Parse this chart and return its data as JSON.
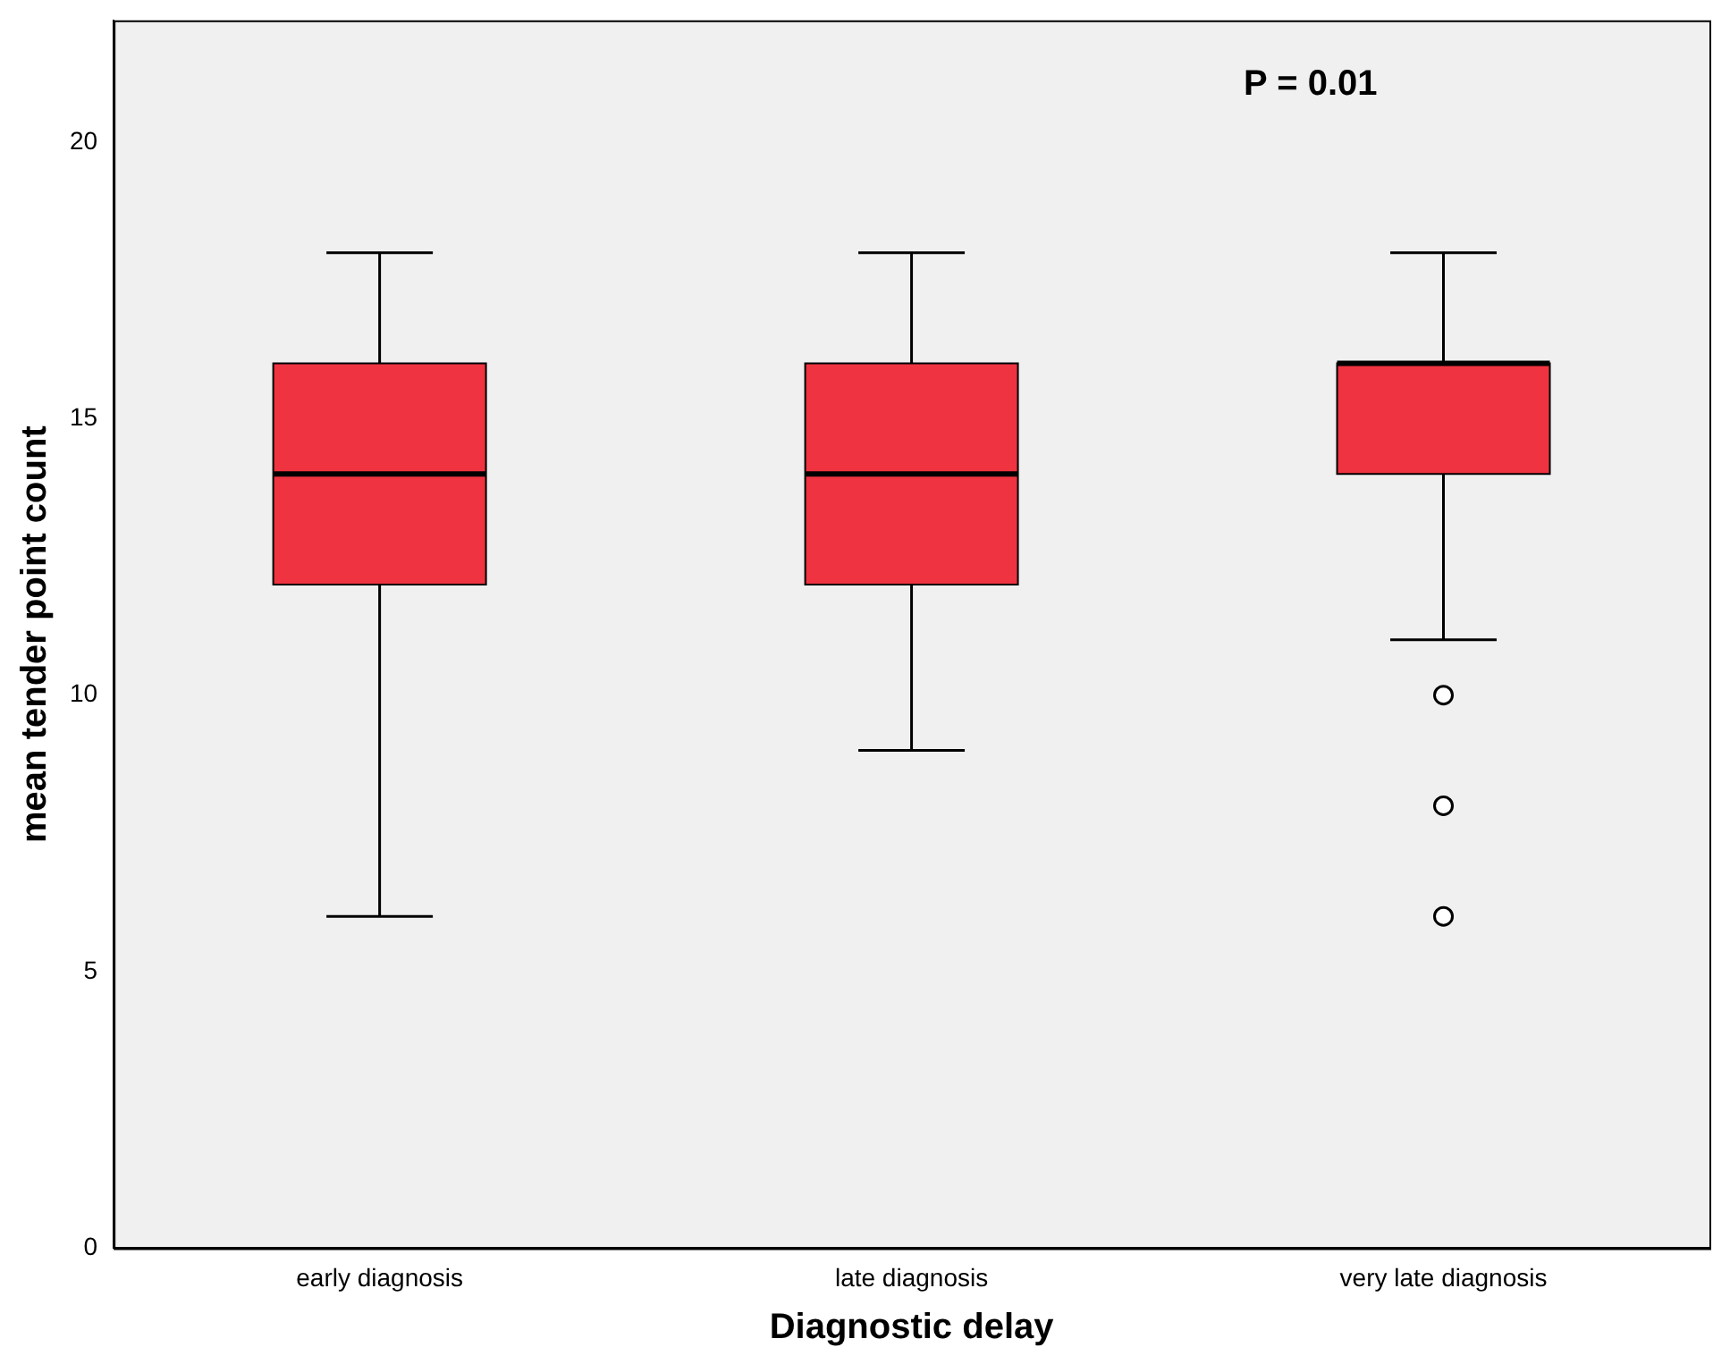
{
  "chart_data": {
    "type": "box",
    "xlabel": "Diagnostic delay",
    "ylabel": "mean tender point count",
    "categories": [
      "early diagnosis",
      "late diagnosis",
      "very late diagnosis"
    ],
    "boxes": [
      {
        "low": 6,
        "q1": 12,
        "median": 14,
        "q3": 16,
        "high": 18
      },
      {
        "low": 9,
        "q1": 12,
        "median": 14,
        "q3": 16,
        "high": 18
      },
      {
        "low": 11,
        "q1": 14,
        "median": 16,
        "q3": 16,
        "high": 18,
        "outliers": [
          10,
          8,
          6
        ]
      }
    ],
    "color": "#ef3340",
    "ylim": [
      0,
      22.2
    ],
    "yticks": [
      0,
      5,
      10,
      15,
      20
    ],
    "grid": false,
    "legend": false,
    "annotations": [
      "P = 0.01"
    ]
  }
}
